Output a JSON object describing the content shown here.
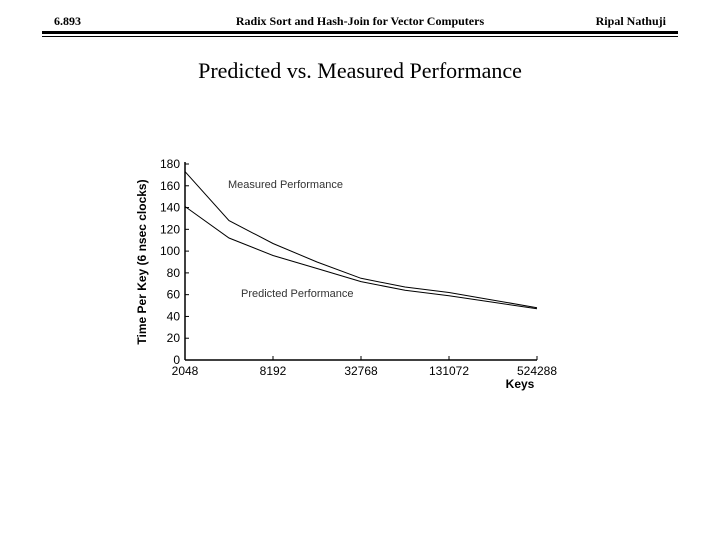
{
  "header": {
    "left": "6.893",
    "center": "Radix Sort and Hash-Join for Vector Computers",
    "right": "Ripal Nathuji"
  },
  "slide": {
    "title": "Predicted vs. Measured Performance"
  },
  "chart_data": {
    "type": "line",
    "title": "",
    "xlabel": "Keys",
    "ylabel": "Time Per Key (6 nsec clocks)",
    "x_scale": "log2",
    "xlim": [
      2048,
      524288
    ],
    "ylim": [
      0,
      180
    ],
    "y_ticks": [
      0,
      20,
      40,
      60,
      80,
      100,
      120,
      140,
      160,
      180
    ],
    "x_ticks": [
      2048,
      8192,
      32768,
      131072,
      524288
    ],
    "x_tick_labels": [
      "2048",
      "8192",
      "32768",
      "131072",
      "524288"
    ],
    "grid": false,
    "series": [
      {
        "name": "Measured Performance",
        "x": [
          2048,
          4096,
          8192,
          16384,
          32768,
          65536,
          131072,
          262144,
          524288
        ],
        "values": [
          173,
          128,
          107,
          90,
          75,
          67,
          62,
          55,
          48
        ]
      },
      {
        "name": "Predicted Performance",
        "x": [
          2048,
          4096,
          8192,
          16384,
          32768,
          65536,
          131072,
          262144,
          524288
        ],
        "values": [
          141,
          112,
          96,
          84,
          72,
          64,
          59,
          53,
          47
        ]
      }
    ]
  }
}
